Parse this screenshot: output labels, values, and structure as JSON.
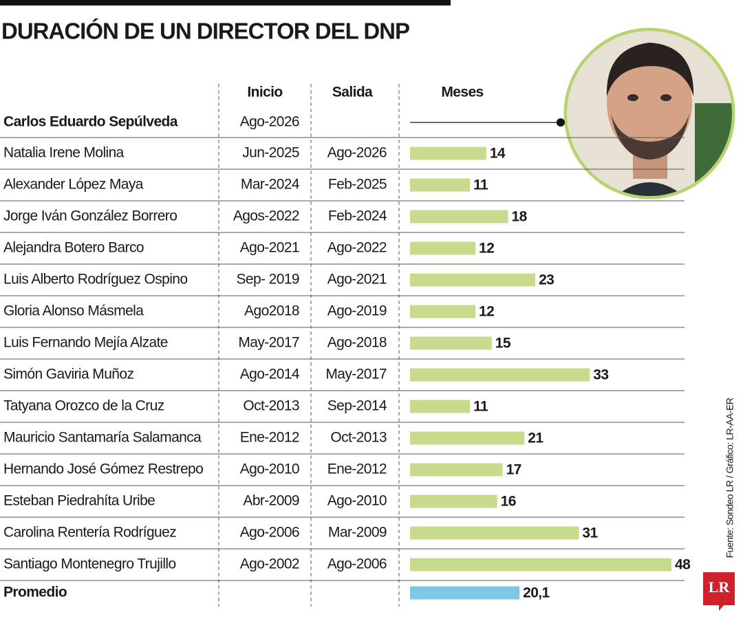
{
  "chart_data": {
    "type": "bar",
    "title": "DURACIÓN DE UN DIRECTOR DEL DNP",
    "headers": [
      "Inicio",
      "Salida",
      "Meses"
    ],
    "current": {
      "name": "Carlos Eduardo Sepúlveda",
      "start": "Ago-2026"
    },
    "categories": [
      "Natalia Irene Molina",
      "Alexander López Maya",
      "Jorge Iván González Borrero",
      "Alejandra Botero Barco",
      "Luis Alberto Rodríguez Ospino",
      "Gloria Alonso Másmela",
      "Luis Fernando Mejía Alzate",
      "Simón Gaviria Muñoz",
      "Tatyana Orozco de la Cruz",
      "Mauricio Santamaría Salamanca",
      "Hernando José Gómez Restrepo",
      "Esteban Piedrahíta Uribe",
      "Carolina Rentería Rodríguez",
      "Santiago Montenegro Trujillo"
    ],
    "start": [
      "Jun-2025",
      "Mar-2024",
      "Agos-2022",
      "Ago-2021",
      "Sep- 2019",
      "Ago2018",
      "May-2017",
      "Ago-2014",
      "Oct-2013",
      "Ene-2012",
      "Ago-2010",
      "Abr-2009",
      "Ago-2006",
      "Ago-2002"
    ],
    "end": [
      "Ago-2026",
      "Feb-2025",
      "Feb-2024",
      "Ago-2022",
      "Ago-2021",
      "Ago-2019",
      "Ago-2018",
      "May-2017",
      "Sep-2014",
      "Oct-2013",
      "Ene-2012",
      "Ago-2010",
      "Mar-2009",
      "Ago-2006"
    ],
    "values": [
      14,
      11,
      18,
      12,
      23,
      12,
      15,
      33,
      11,
      21,
      17,
      16,
      31,
      48
    ],
    "color": "#c6dc8c",
    "average": {
      "label": "Promedio",
      "value": 20.1,
      "value_label": "20,1",
      "color": "#7ec8e3"
    },
    "source": "Fuente: Sondeo LR / Gráfico: LR-AA-ER",
    "logo": "LR"
  }
}
